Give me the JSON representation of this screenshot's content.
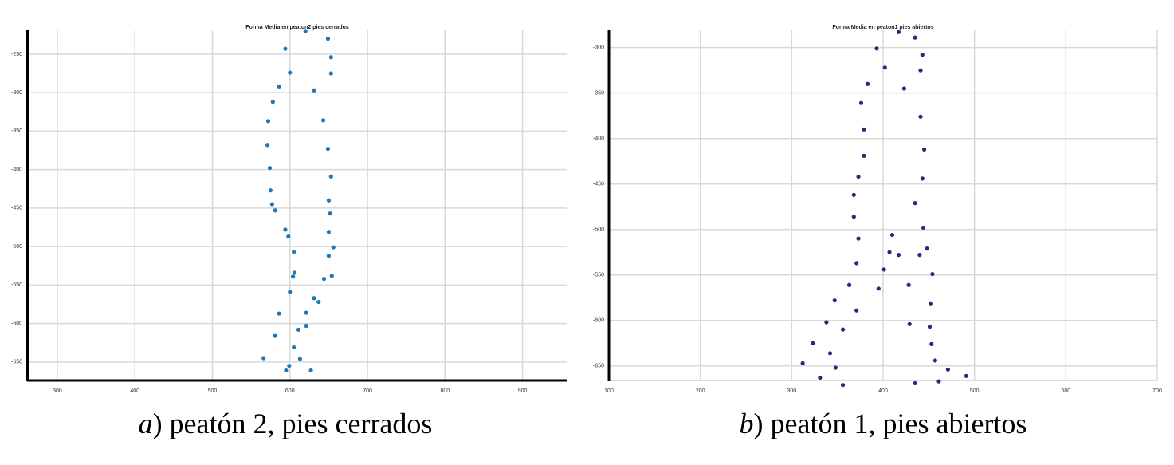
{
  "chart_data": [
    {
      "type": "scatter",
      "title": "Forma Media en peaton2 pies cerrados",
      "caption_letter": "a",
      "caption": ") peatón 2, pies cerrados",
      "color": "#1f77b4",
      "grid": true,
      "xlim": [
        261,
        958
      ],
      "ylim": [
        -674,
        -219
      ],
      "xticks": [
        300,
        400,
        500,
        600,
        700,
        800,
        900
      ],
      "yticks": [
        -250,
        -300,
        -350,
        -400,
        -450,
        -500,
        -550,
        -600,
        -650
      ],
      "x": [
        620,
        649,
        594,
        653,
        600,
        653,
        586,
        631,
        578,
        643,
        572,
        649,
        571,
        574,
        653,
        575,
        650,
        577,
        581,
        652,
        594,
        650,
        598,
        656,
        605,
        650,
        606,
        604,
        654,
        644,
        600,
        631,
        637,
        586,
        621,
        581,
        611,
        621,
        605,
        566,
        613,
        599,
        595,
        627
      ],
      "values": [
        -220,
        -230,
        -243,
        -254,
        -274,
        -275,
        -292,
        -297,
        -312,
        -336,
        -337,
        -373,
        -368,
        -398,
        -409,
        -427,
        -440,
        -445,
        -453,
        -457,
        -478,
        -481,
        -487,
        -501,
        -507,
        -512,
        -534,
        -539,
        -538,
        -542,
        -559,
        -567,
        -572,
        -587,
        -586,
        -616,
        -608,
        -603,
        -631,
        -645,
        -646,
        -655,
        -661,
        -661
      ]
    },
    {
      "type": "scatter",
      "title": "Forma Media en peaton1 pies abiertos",
      "caption_letter": "b",
      "caption": ") peatón 1, pies abiertos",
      "color": "#2b2a7a",
      "grid": true,
      "xlim": [
        100,
        700
      ],
      "ylim": [
        -666,
        -281
      ],
      "xticks": [
        100,
        200,
        300,
        400,
        500,
        600,
        700
      ],
      "yticks": [
        -300,
        -350,
        -400,
        -450,
        -500,
        -550,
        -600,
        -650
      ],
      "x": [
        417,
        435,
        393,
        443,
        402,
        441,
        383,
        423,
        376,
        441,
        379,
        445,
        379,
        373,
        443,
        368,
        435,
        368,
        444,
        373,
        410,
        407,
        417,
        448,
        440,
        371,
        401,
        454,
        363,
        395,
        428,
        347,
        371,
        452,
        338,
        356,
        429,
        451,
        323,
        342,
        453,
        348,
        312,
        457,
        331,
        356,
        435,
        461,
        471,
        491
      ],
      "values": [
        -283,
        -289,
        -301,
        -308,
        -322,
        -325,
        -340,
        -345,
        -361,
        -376,
        -390,
        -412,
        -419,
        -442,
        -444,
        -462,
        -471,
        -486,
        -498,
        -510,
        -506,
        -525,
        -528,
        -521,
        -528,
        -537,
        -544,
        -549,
        -561,
        -565,
        -561,
        -578,
        -589,
        -582,
        -602,
        -610,
        -604,
        -607,
        -625,
        -636,
        -626,
        -652,
        -647,
        -644,
        -663,
        -671,
        -669,
        -667,
        -654,
        -661
      ]
    }
  ]
}
